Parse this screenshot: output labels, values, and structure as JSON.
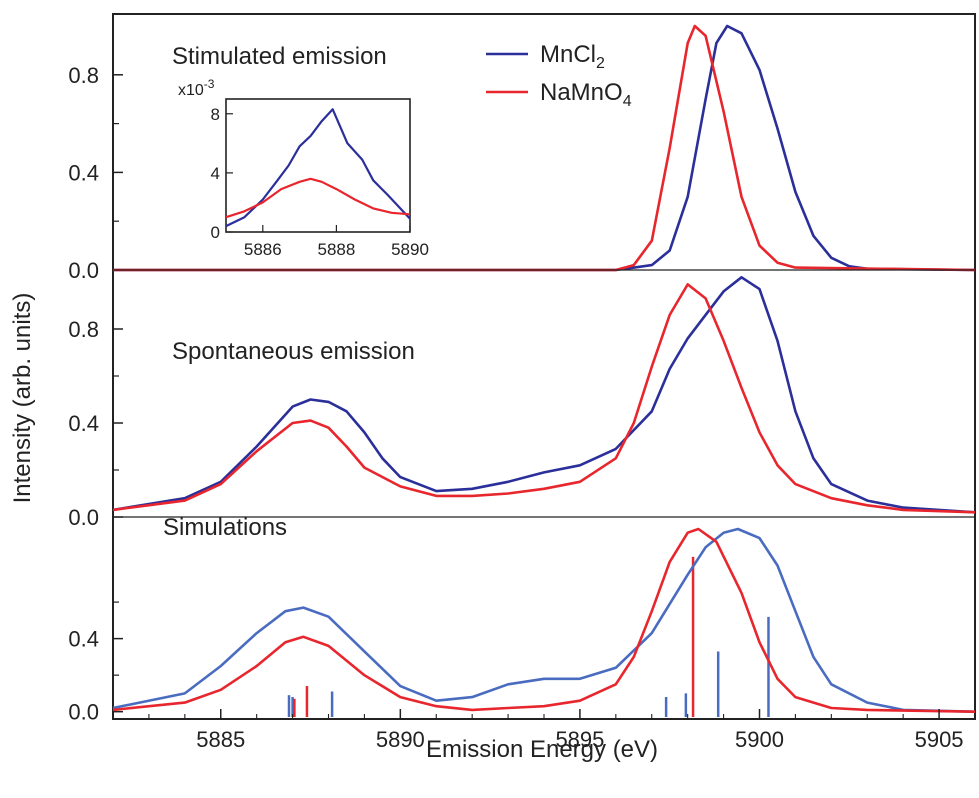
{
  "chart_data": [
    {
      "type": "line",
      "xlabel": "Emission Energy  (eV)",
      "ylabel": "Intensity  (arb. units)",
      "xlim": [
        5882,
        5906
      ],
      "x_ticks": [
        "5885",
        "5890",
        "5895",
        "5900",
        "5905"
      ],
      "colors": {
        "MnCl2": "#2b2f9a",
        "NaMnO4": "#e8262d",
        "sim_blue": "#4a6cc0"
      },
      "legend": {
        "placement": "top-center",
        "entries": [
          {
            "text": "MnCl",
            "sub": "2",
            "tail": "",
            "color": "#2b2f9a"
          },
          {
            "text": "NaMnO",
            "sub": "4",
            "tail": "",
            "color": "#e8262d"
          }
        ]
      },
      "panels": [
        {
          "label": "Stimulated emission",
          "ylim": [
            0,
            1.0
          ],
          "y_ticks": [
            "0.0",
            "0.4",
            "0.8"
          ],
          "series": [
            {
              "name": "MnCl2",
              "color": "#2b2f9a",
              "x": [
                5882,
                5896,
                5897,
                5897.5,
                5898,
                5898.5,
                5898.8,
                5899.1,
                5899.5,
                5900,
                5900.5,
                5901,
                5901.5,
                5902,
                5902.5,
                5903,
                5906
              ],
              "y": [
                0,
                0,
                0.02,
                0.08,
                0.3,
                0.7,
                0.93,
                1.0,
                0.97,
                0.82,
                0.58,
                0.32,
                0.14,
                0.05,
                0.015,
                0.005,
                0
              ]
            },
            {
              "name": "NaMnO4",
              "color": "#e8262d",
              "x": [
                5882,
                5896,
                5896.5,
                5897,
                5897.5,
                5898,
                5898.2,
                5898.5,
                5899,
                5899.5,
                5900,
                5900.5,
                5901,
                5906
              ],
              "y": [
                0,
                0,
                0.02,
                0.12,
                0.5,
                0.93,
                1.0,
                0.96,
                0.65,
                0.3,
                0.1,
                0.03,
                0.01,
                0
              ]
            }
          ]
        },
        {
          "label": "Spontaneous emission",
          "ylim": [
            0,
            1.0
          ],
          "y_ticks": [
            "0.0",
            "0.4",
            "0.8"
          ],
          "series": [
            {
              "name": "MnCl2",
              "color": "#2b2f9a",
              "x": [
                5882,
                5884,
                5885,
                5886,
                5887,
                5887.5,
                5888,
                5888.5,
                5889,
                5889.5,
                5890,
                5891,
                5892,
                5893,
                5894,
                5895,
                5896,
                5897,
                5897.5,
                5898,
                5898.5,
                5899,
                5899.5,
                5900,
                5900.5,
                5901,
                5901.5,
                5902,
                5903,
                5904,
                5906
              ],
              "y": [
                0.03,
                0.08,
                0.15,
                0.3,
                0.47,
                0.5,
                0.49,
                0.45,
                0.36,
                0.25,
                0.17,
                0.11,
                0.12,
                0.15,
                0.19,
                0.22,
                0.29,
                0.45,
                0.63,
                0.76,
                0.86,
                0.96,
                1.02,
                0.97,
                0.75,
                0.45,
                0.25,
                0.14,
                0.07,
                0.04,
                0.02
              ]
            },
            {
              "name": "NaMnO4",
              "color": "#e8262d",
              "x": [
                5882,
                5884,
                5885,
                5886,
                5887,
                5887.5,
                5888,
                5888.5,
                5889,
                5890,
                5891,
                5892,
                5893,
                5894,
                5895,
                5896,
                5896.5,
                5897,
                5897.5,
                5898,
                5898.5,
                5899,
                5899.5,
                5900,
                5900.5,
                5901,
                5902,
                5903,
                5904,
                5906
              ],
              "y": [
                0.03,
                0.07,
                0.14,
                0.28,
                0.4,
                0.41,
                0.38,
                0.3,
                0.21,
                0.13,
                0.09,
                0.09,
                0.1,
                0.12,
                0.15,
                0.25,
                0.4,
                0.64,
                0.86,
                0.99,
                0.93,
                0.75,
                0.55,
                0.36,
                0.22,
                0.14,
                0.08,
                0.05,
                0.03,
                0.02
              ]
            }
          ]
        },
        {
          "label": "Simulations",
          "ylim": [
            -0.04,
            1.0
          ],
          "y_ticks": [
            "0.0",
            "0.4"
          ],
          "series": [
            {
              "name": "MnCl2 simulation",
              "color": "#4a6cc0",
              "x": [
                5882,
                5884,
                5885,
                5886,
                5886.8,
                5887.3,
                5888,
                5889,
                5890,
                5891,
                5892,
                5893,
                5894,
                5895,
                5896,
                5897,
                5898,
                5898.5,
                5899,
                5899.4,
                5900,
                5900.5,
                5901,
                5901.5,
                5902,
                5903,
                5904,
                5906
              ],
              "y": [
                0.02,
                0.1,
                0.25,
                0.43,
                0.55,
                0.57,
                0.52,
                0.33,
                0.14,
                0.06,
                0.08,
                0.15,
                0.18,
                0.18,
                0.24,
                0.43,
                0.75,
                0.9,
                0.98,
                1.0,
                0.95,
                0.8,
                0.55,
                0.3,
                0.15,
                0.05,
                0.01,
                0
              ]
            },
            {
              "name": "NaMnO4 simulation",
              "color": "#e8262d",
              "x": [
                5882,
                5884,
                5885,
                5886,
                5886.8,
                5887.3,
                5888,
                5889,
                5890,
                5891,
                5892,
                5893,
                5894,
                5895,
                5896,
                5896.5,
                5897,
                5897.5,
                5898,
                5898.3,
                5898.8,
                5899.5,
                5900,
                5900.5,
                5901,
                5902,
                5903,
                5906
              ],
              "y": [
                0.01,
                0.05,
                0.12,
                0.25,
                0.38,
                0.41,
                0.36,
                0.2,
                0.08,
                0.03,
                0.01,
                0.02,
                0.03,
                0.06,
                0.15,
                0.3,
                0.55,
                0.82,
                0.98,
                1.0,
                0.93,
                0.65,
                0.38,
                0.18,
                0.08,
                0.02,
                0.01,
                0
              ]
            }
          ],
          "sticks": [
            {
              "x": 5886.9,
              "h": 0.12,
              "color": "#4a6cc0"
            },
            {
              "x": 5887.0,
              "h": 0.11,
              "color": "#4a6cc0"
            },
            {
              "x": 5887.05,
              "h": 0.1,
              "color": "#e8262d"
            },
            {
              "x": 5887.4,
              "h": 0.17,
              "color": "#e8262d"
            },
            {
              "x": 5888.1,
              "h": 0.14,
              "color": "#4a6cc0"
            },
            {
              "x": 5897.4,
              "h": 0.11,
              "color": "#4a6cc0"
            },
            {
              "x": 5897.95,
              "h": 0.13,
              "color": "#4a6cc0"
            },
            {
              "x": 5898.15,
              "h": 0.88,
              "color": "#e8262d"
            },
            {
              "x": 5898.85,
              "h": 0.36,
              "color": "#4a6cc0"
            },
            {
              "x": 5900.25,
              "h": 0.55,
              "color": "#4a6cc0"
            }
          ]
        }
      ]
    },
    {
      "type": "line",
      "title": "x10-3",
      "title_base": "x10",
      "title_exp": "-3",
      "xlim": [
        5885,
        5890
      ],
      "ylim": [
        0,
        9
      ],
      "x_ticks": [
        "5886",
        "5888",
        "5890"
      ],
      "y_ticks": [
        "0",
        "4",
        "8"
      ],
      "series": [
        {
          "name": "MnCl2",
          "color": "#2b2f9a",
          "x": [
            5885,
            5885.5,
            5886,
            5886.4,
            5886.7,
            5887,
            5887.3,
            5887.6,
            5887.9,
            5888.3,
            5888.7,
            5889,
            5889.4,
            5890
          ],
          "y": [
            0.4,
            1.0,
            2.2,
            3.5,
            4.5,
            5.8,
            6.5,
            7.5,
            8.3,
            6.0,
            4.9,
            3.5,
            2.5,
            0.9
          ]
        },
        {
          "name": "NaMnO4",
          "color": "#e8262d",
          "x": [
            5885,
            5885.5,
            5886,
            5886.5,
            5887,
            5887.3,
            5887.6,
            5888,
            5888.5,
            5889,
            5889.5,
            5890
          ],
          "y": [
            1.0,
            1.4,
            2.0,
            2.9,
            3.4,
            3.6,
            3.4,
            2.9,
            2.2,
            1.6,
            1.3,
            1.2
          ]
        }
      ]
    }
  ]
}
